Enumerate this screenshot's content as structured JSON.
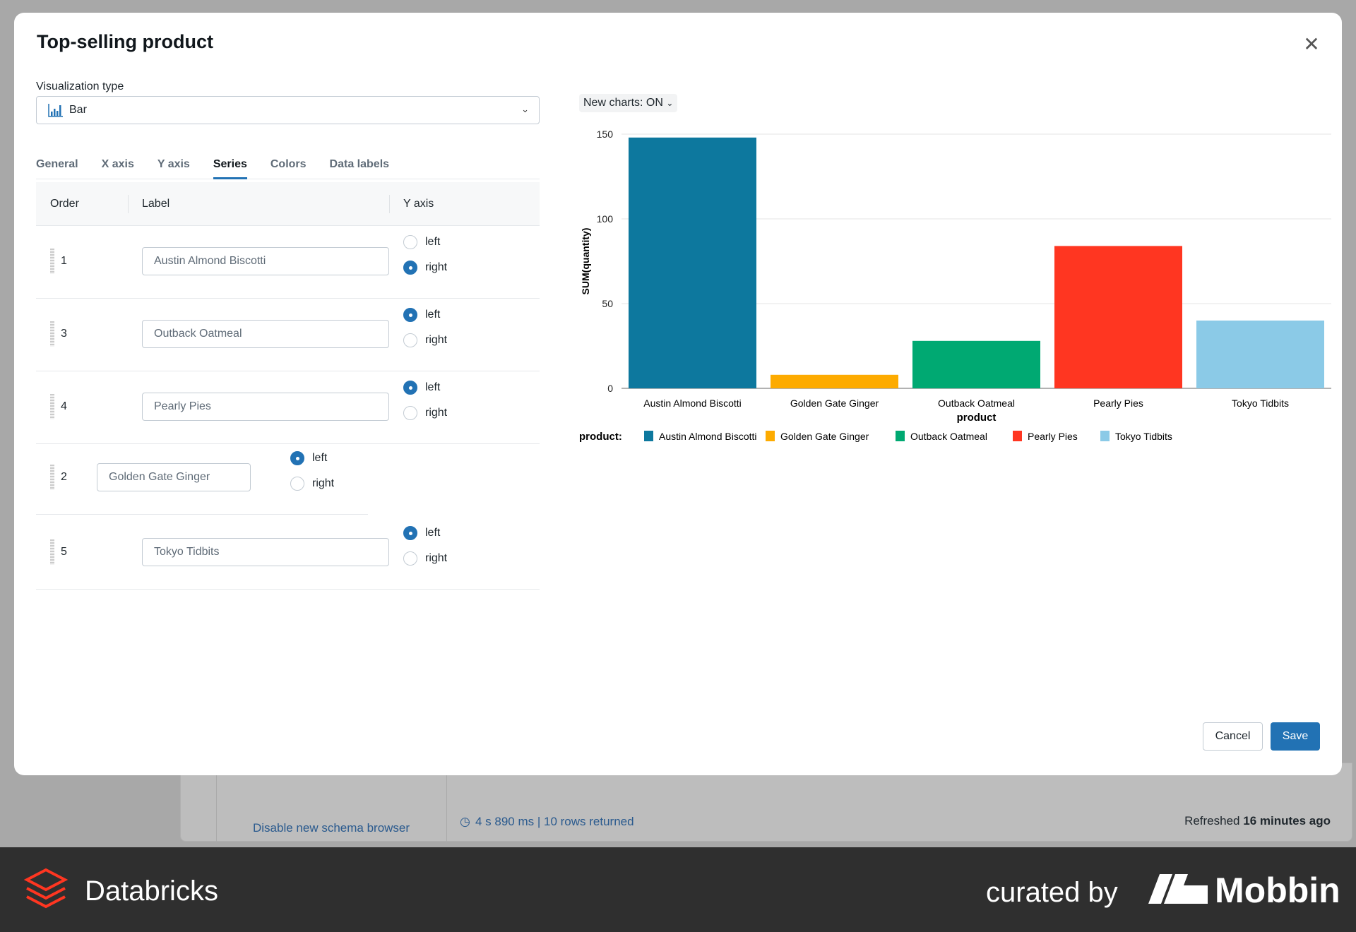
{
  "background": {
    "schema_link": "Disable new schema browser",
    "query_stats": "4 s 890 ms | 10 rows returned",
    "refreshed_prefix": "Refreshed",
    "refreshed_value": "16 minutes ago"
  },
  "modal": {
    "title": "Top-selling product",
    "viz_label": "Visualization type",
    "viz_value": "Bar",
    "tabs": [
      "General",
      "X axis",
      "Y axis",
      "Series",
      "Colors",
      "Data labels"
    ],
    "active_tab": "Series",
    "columns": {
      "order": "Order",
      "label": "Label",
      "yaxis": "Y axis"
    },
    "radio_left": "left",
    "radio_right": "right",
    "series": [
      {
        "order": "1",
        "label": "Austin Almond Biscotti",
        "axis": "right"
      },
      {
        "order": "3",
        "label": "Outback Oatmeal",
        "axis": "left"
      },
      {
        "order": "4",
        "label": "Pearly Pies",
        "axis": "left"
      },
      {
        "order": "2",
        "label": "Golden Gate Ginger",
        "axis": "left"
      },
      {
        "order": "5",
        "label": "Tokyo Tidbits",
        "axis": "left"
      }
    ],
    "new_charts": "New charts: ON",
    "cancel": "Cancel",
    "save": "Save"
  },
  "chart_data": {
    "type": "bar",
    "categories": [
      "Austin Almond Biscotti",
      "Golden Gate Ginger",
      "Outback Oatmeal",
      "Pearly Pies",
      "Tokyo Tidbits"
    ],
    "values": [
      148,
      8,
      28,
      84,
      40
    ],
    "colors": [
      "#0d789e",
      "#fdab00",
      "#00a972",
      "#ff3621",
      "#8bcae7"
    ],
    "xlabel": "product",
    "ylabel": "SUM(quantity)",
    "ylim": [
      0,
      150
    ],
    "yticks": [
      "0",
      "50",
      "100",
      "150"
    ],
    "grid": true,
    "legend_title": "product:",
    "legend_placement": "bottom"
  },
  "footer": {
    "brand": "Databricks",
    "curated": "curated by",
    "mobbin": "Mobbin"
  }
}
